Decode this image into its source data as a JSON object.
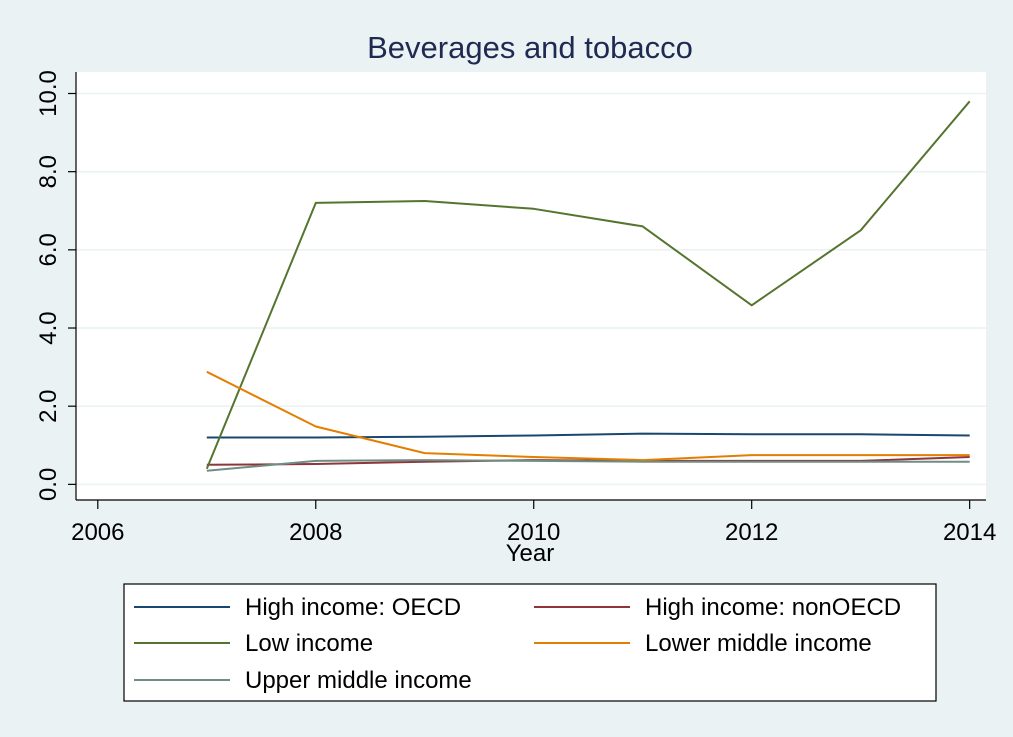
{
  "chart_data": {
    "type": "line",
    "title": "Beverages and tobacco",
    "xlabel": "Year",
    "ylabel": "",
    "xlim": [
      2005.8,
      2014.15
    ],
    "ylim": [
      -0.4,
      10.55
    ],
    "x_ticks": [
      2006,
      2008,
      2010,
      2012,
      2014
    ],
    "y_ticks": [
      0,
      2,
      4,
      6,
      8,
      10
    ],
    "x_tick_labels": [
      "2006",
      "2008",
      "2010",
      "2012",
      "2014"
    ],
    "y_tick_labels": [
      "0.0",
      "2.0",
      "4.0",
      "6.0",
      "8.0",
      "10.0"
    ],
    "grid": "horizontal",
    "legend_position": "bottom",
    "x": [
      2007,
      2008,
      2009,
      2010,
      2011,
      2012,
      2013,
      2014
    ],
    "series": [
      {
        "name": "High income: OECD",
        "color": "#1a476f",
        "values": [
          1.2,
          1.2,
          1.22,
          1.25,
          1.3,
          1.28,
          1.28,
          1.25
        ]
      },
      {
        "name": "High income: nonOECD",
        "color": "#90353b",
        "values": [
          0.5,
          0.52,
          0.58,
          0.62,
          0.6,
          0.6,
          0.6,
          0.7
        ]
      },
      {
        "name": "Low income",
        "color": "#55752f",
        "values": [
          0.4,
          7.2,
          7.25,
          7.05,
          6.6,
          4.58,
          6.5,
          9.8
        ]
      },
      {
        "name": "Lower middle income",
        "color": "#e37e00",
        "values": [
          2.88,
          1.48,
          0.8,
          0.7,
          0.62,
          0.75,
          0.75,
          0.75
        ]
      },
      {
        "name": "Upper middle income",
        "color": "#6e8e84",
        "values": [
          0.35,
          0.6,
          0.62,
          0.6,
          0.58,
          0.58,
          0.58,
          0.58
        ]
      }
    ]
  }
}
